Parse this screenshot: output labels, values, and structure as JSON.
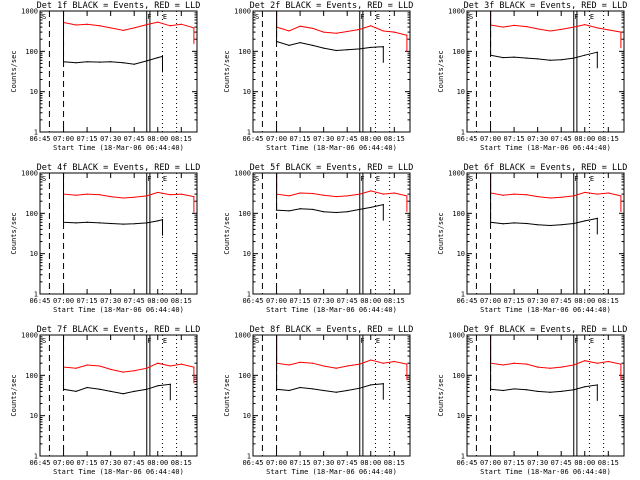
{
  "colors": {
    "events": "#000000",
    "lld": "#ff0000",
    "background": "#ffffff"
  },
  "chart_data": [
    {
      "type": "line",
      "title": "Det 1f BLACK = Events, RED = LLD",
      "xlabel": "Start Time (18-Mar-06 06:44:40)",
      "ylabel": "Counts/sec",
      "yscale": "log",
      "ylim": [
        1,
        1000
      ],
      "xlim": [
        "06:45",
        "08:25"
      ],
      "x_ticks": [
        "06:45",
        "07:00",
        "07:15",
        "07:30",
        "07:45",
        "08:00",
        "08:15"
      ],
      "y_ticks": [
        "1",
        "10",
        "100",
        "1000"
      ],
      "markers": [
        "S",
        "F",
        "E"
      ],
      "series": [
        {
          "name": "RED = LLD",
          "x": [
            "07:00",
            "07:08",
            "07:15",
            "07:23",
            "07:30",
            "07:38",
            "07:45",
            "07:53",
            "08:00",
            "08:08",
            "08:15",
            "08:23"
          ],
          "y": [
            520,
            450,
            470,
            430,
            380,
            330,
            380,
            460,
            530,
            430,
            470,
            380
          ]
        },
        {
          "name": "BLACK = Events",
          "x": [
            "07:00",
            "07:08",
            "07:15",
            "07:23",
            "07:30",
            "07:38",
            "07:45",
            "07:53",
            "08:00",
            "08:03"
          ],
          "y": [
            55,
            52,
            55,
            54,
            55,
            52,
            48,
            58,
            70,
            75
          ]
        }
      ]
    },
    {
      "type": "line",
      "title": "Det 2f BLACK = Events, RED = LLD",
      "xlabel": "Start Time (18-Mar-06 06:44:40)",
      "ylabel": "Counts/sec",
      "yscale": "log",
      "ylim": [
        1,
        1000
      ],
      "xlim": [
        "06:45",
        "08:25"
      ],
      "x_ticks": [
        "06:45",
        "07:00",
        "07:15",
        "07:30",
        "07:45",
        "08:00",
        "08:15"
      ],
      "y_ticks": [
        "1",
        "10",
        "100",
        "1000"
      ],
      "markers": [
        "S",
        "F",
        "E"
      ],
      "series": [
        {
          "name": "RED = LLD",
          "x": [
            "07:00",
            "07:08",
            "07:15",
            "07:23",
            "07:30",
            "07:38",
            "07:45",
            "07:53",
            "08:00",
            "08:08",
            "08:15",
            "08:23"
          ],
          "y": [
            400,
            320,
            420,
            370,
            300,
            280,
            310,
            350,
            430,
            320,
            300,
            250
          ]
        },
        {
          "name": "BLACK = Events",
          "x": [
            "07:00",
            "07:08",
            "07:15",
            "07:23",
            "07:30",
            "07:38",
            "07:45",
            "07:53",
            "08:00",
            "08:08"
          ],
          "y": [
            175,
            140,
            165,
            140,
            120,
            105,
            110,
            115,
            125,
            130
          ]
        }
      ]
    },
    {
      "type": "line",
      "title": "Det 3f BLACK = Events, RED = LLD",
      "xlabel": "Start Time (18-Mar-06 06:44:40)",
      "ylabel": "Counts/sec",
      "yscale": "log",
      "ylim": [
        1,
        1000
      ],
      "xlim": [
        "06:45",
        "08:25"
      ],
      "x_ticks": [
        "06:45",
        "07:00",
        "07:15",
        "07:30",
        "07:45",
        "08:00",
        "08:15"
      ],
      "y_ticks": [
        "1",
        "10",
        "100",
        "1000"
      ],
      "markers": [
        "S",
        "F",
        "E"
      ],
      "series": [
        {
          "name": "RED = LLD",
          "x": [
            "07:00",
            "07:08",
            "07:15",
            "07:23",
            "07:30",
            "07:38",
            "07:45",
            "07:53",
            "08:00",
            "08:08",
            "08:15",
            "08:23"
          ],
          "y": [
            450,
            400,
            440,
            410,
            360,
            320,
            350,
            400,
            460,
            380,
            340,
            300
          ]
        },
        {
          "name": "BLACK = Events",
          "x": [
            "07:00",
            "07:08",
            "07:15",
            "07:23",
            "07:30",
            "07:38",
            "07:45",
            "07:53",
            "08:00",
            "08:08"
          ],
          "y": [
            80,
            70,
            72,
            68,
            65,
            60,
            62,
            68,
            80,
            95
          ]
        }
      ]
    },
    {
      "type": "line",
      "title": "Det 4f BLACK = Events, RED = LLD",
      "xlabel": "Start Time (18-Mar-06 06:44:40)",
      "ylabel": "Counts/sec",
      "yscale": "log",
      "ylim": [
        1,
        1000
      ],
      "xlim": [
        "06:45",
        "08:25"
      ],
      "x_ticks": [
        "06:45",
        "07:00",
        "07:15",
        "07:30",
        "07:45",
        "08:00",
        "08:15"
      ],
      "y_ticks": [
        "1",
        "10",
        "100",
        "1000"
      ],
      "markers": [
        "S",
        "F",
        "E"
      ],
      "series": [
        {
          "name": "RED = LLD",
          "x": [
            "07:00",
            "07:08",
            "07:15",
            "07:23",
            "07:30",
            "07:38",
            "07:45",
            "07:53",
            "08:00",
            "08:08",
            "08:15",
            "08:23"
          ],
          "y": [
            300,
            280,
            300,
            290,
            260,
            240,
            250,
            270,
            330,
            290,
            300,
            260
          ]
        },
        {
          "name": "BLACK = Events",
          "x": [
            "07:00",
            "07:08",
            "07:15",
            "07:23",
            "07:30",
            "07:38",
            "07:45",
            "07:53",
            "08:00",
            "08:03"
          ],
          "y": [
            60,
            58,
            60,
            58,
            56,
            54,
            55,
            58,
            65,
            70
          ]
        }
      ]
    },
    {
      "type": "line",
      "title": "Det 5f BLACK = Events, RED = LLD",
      "xlabel": "Start Time (18-Mar-06 06:44:40)",
      "ylabel": "Counts/sec",
      "yscale": "log",
      "ylim": [
        1,
        1000
      ],
      "xlim": [
        "06:45",
        "08:25"
      ],
      "x_ticks": [
        "06:45",
        "07:00",
        "07:15",
        "07:30",
        "07:45",
        "08:00",
        "08:15"
      ],
      "y_ticks": [
        "1",
        "10",
        "100",
        "1000"
      ],
      "markers": [
        "S",
        "F",
        "E"
      ],
      "series": [
        {
          "name": "RED = LLD",
          "x": [
            "07:00",
            "07:08",
            "07:15",
            "07:23",
            "07:30",
            "07:38",
            "07:45",
            "07:53",
            "08:00",
            "08:08",
            "08:15",
            "08:23"
          ],
          "y": [
            300,
            270,
            320,
            310,
            280,
            260,
            270,
            300,
            360,
            300,
            320,
            270
          ]
        },
        {
          "name": "BLACK = Events",
          "x": [
            "07:00",
            "07:08",
            "07:15",
            "07:23",
            "07:30",
            "07:38",
            "07:45",
            "07:53",
            "08:00",
            "08:08"
          ],
          "y": [
            120,
            115,
            130,
            125,
            110,
            105,
            110,
            125,
            140,
            165
          ]
        }
      ]
    },
    {
      "type": "line",
      "title": "Det 6f BLACK = Events, RED = LLD",
      "xlabel": "Start Time (18-Mar-06 06:44:40)",
      "ylabel": "Counts/sec",
      "yscale": "log",
      "ylim": [
        1,
        1000
      ],
      "xlim": [
        "06:45",
        "08:25"
      ],
      "x_ticks": [
        "06:45",
        "07:00",
        "07:15",
        "07:30",
        "07:45",
        "08:00",
        "08:15"
      ],
      "y_ticks": [
        "1",
        "10",
        "100",
        "1000"
      ],
      "markers": [
        "S",
        "F",
        "E"
      ],
      "series": [
        {
          "name": "RED = LLD",
          "x": [
            "07:00",
            "07:08",
            "07:15",
            "07:23",
            "07:30",
            "07:38",
            "07:45",
            "07:53",
            "08:00",
            "08:08",
            "08:15",
            "08:23"
          ],
          "y": [
            320,
            280,
            300,
            290,
            260,
            240,
            250,
            270,
            330,
            300,
            320,
            270
          ]
        },
        {
          "name": "BLACK = Events",
          "x": [
            "07:00",
            "07:08",
            "07:15",
            "07:23",
            "07:30",
            "07:38",
            "07:45",
            "07:53",
            "08:00",
            "08:08"
          ],
          "y": [
            60,
            55,
            58,
            56,
            52,
            50,
            52,
            56,
            65,
            75
          ]
        }
      ]
    },
    {
      "type": "line",
      "title": "Det 7f BLACK = Events, RED = LLD",
      "xlabel": "Start Time (18-Mar-06 06:44:40)",
      "ylabel": "Counts/sec",
      "yscale": "log",
      "ylim": [
        1,
        1000
      ],
      "xlim": [
        "06:45",
        "08:25"
      ],
      "x_ticks": [
        "06:45",
        "07:00",
        "07:15",
        "07:30",
        "07:45",
        "08:00",
        "08:15"
      ],
      "y_ticks": [
        "1",
        "10",
        "100",
        "1000"
      ],
      "markers": [
        "S",
        "F",
        "E"
      ],
      "series": [
        {
          "name": "RED = LLD",
          "x": [
            "07:00",
            "07:08",
            "07:15",
            "07:23",
            "07:30",
            "07:38",
            "07:45",
            "07:53",
            "08:00",
            "08:08",
            "08:15",
            "08:23"
          ],
          "y": [
            160,
            150,
            180,
            170,
            140,
            120,
            130,
            150,
            200,
            170,
            190,
            160
          ]
        },
        {
          "name": "BLACK = Events",
          "x": [
            "07:00",
            "07:08",
            "07:15",
            "07:23",
            "07:30",
            "07:38",
            "07:45",
            "07:53",
            "08:00",
            "08:08"
          ],
          "y": [
            45,
            40,
            50,
            45,
            40,
            35,
            40,
            45,
            55,
            60
          ]
        }
      ]
    },
    {
      "type": "line",
      "title": "Det 8f BLACK = Events, RED = LLD",
      "xlabel": "Start Time (18-Mar-06 06:44:40)",
      "ylabel": "Counts/sec",
      "yscale": "log",
      "ylim": [
        1,
        1000
      ],
      "xlim": [
        "06:45",
        "08:25"
      ],
      "x_ticks": [
        "06:45",
        "07:00",
        "07:15",
        "07:30",
        "07:45",
        "08:00",
        "08:15"
      ],
      "y_ticks": [
        "1",
        "10",
        "100",
        "1000"
      ],
      "markers": [
        "S",
        "F",
        "E"
      ],
      "series": [
        {
          "name": "RED = LLD",
          "x": [
            "07:00",
            "07:08",
            "07:15",
            "07:23",
            "07:30",
            "07:38",
            "07:45",
            "07:53",
            "08:00",
            "08:08",
            "08:15",
            "08:23"
          ],
          "y": [
            200,
            180,
            210,
            200,
            170,
            150,
            170,
            190,
            240,
            200,
            220,
            190
          ]
        },
        {
          "name": "BLACK = Events",
          "x": [
            "07:00",
            "07:08",
            "07:15",
            "07:23",
            "07:30",
            "07:38",
            "07:45",
            "07:53",
            "08:00",
            "08:08"
          ],
          "y": [
            45,
            42,
            50,
            46,
            42,
            38,
            42,
            48,
            58,
            62
          ]
        }
      ]
    },
    {
      "type": "line",
      "title": "Det 9f BLACK = Events, RED = LLD",
      "xlabel": "Start Time (18-Mar-06 06:44:40)",
      "ylabel": "Counts/sec",
      "yscale": "log",
      "ylim": [
        1,
        1000
      ],
      "xlim": [
        "06:45",
        "08:25"
      ],
      "x_ticks": [
        "06:45",
        "07:00",
        "07:15",
        "07:30",
        "07:45",
        "08:00",
        "08:15"
      ],
      "y_ticks": [
        "1",
        "10",
        "100",
        "1000"
      ],
      "markers": [
        "S",
        "F",
        "E"
      ],
      "series": [
        {
          "name": "RED = LLD",
          "x": [
            "07:00",
            "07:08",
            "07:15",
            "07:23",
            "07:30",
            "07:38",
            "07:45",
            "07:53",
            "08:00",
            "08:08",
            "08:15",
            "08:23"
          ],
          "y": [
            200,
            180,
            200,
            190,
            160,
            150,
            160,
            180,
            230,
            200,
            220,
            190
          ]
        },
        {
          "name": "BLACK = Events",
          "x": [
            "07:00",
            "07:08",
            "07:15",
            "07:23",
            "07:30",
            "07:38",
            "07:45",
            "07:53",
            "08:00",
            "08:08"
          ],
          "y": [
            45,
            42,
            46,
            44,
            40,
            38,
            40,
            44,
            52,
            58
          ]
        }
      ]
    }
  ]
}
